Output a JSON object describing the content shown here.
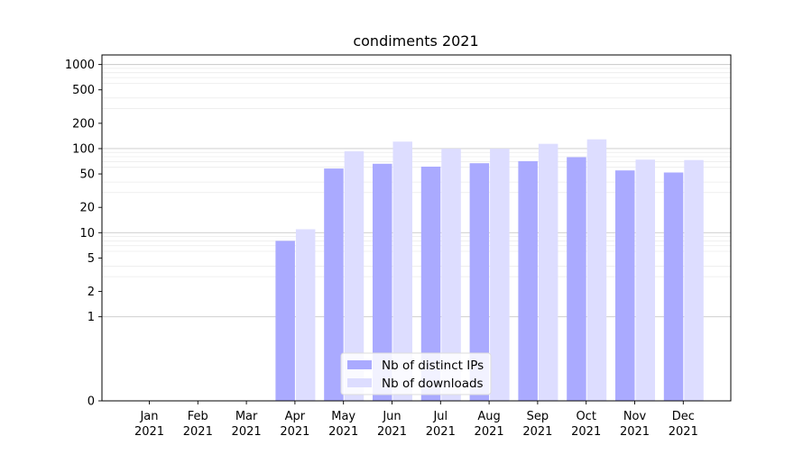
{
  "chart_data": {
    "type": "bar",
    "title": "condiments 2021",
    "xlabel": "",
    "ylabel": "",
    "yscale": "symlog",
    "ylim": [
      0,
      1300
    ],
    "yticks": [
      "0",
      "1",
      "2",
      "5",
      "10",
      "20",
      "50",
      "100",
      "200",
      "500",
      "1000"
    ],
    "categories": [
      [
        "Jan",
        "2021"
      ],
      [
        "Feb",
        "2021"
      ],
      [
        "Mar",
        "2021"
      ],
      [
        "Apr",
        "2021"
      ],
      [
        "May",
        "2021"
      ],
      [
        "Jun",
        "2021"
      ],
      [
        "Jul",
        "2021"
      ],
      [
        "Aug",
        "2021"
      ],
      [
        "Sep",
        "2021"
      ],
      [
        "Oct",
        "2021"
      ],
      [
        "Nov",
        "2021"
      ],
      [
        "Dec",
        "2021"
      ]
    ],
    "series": [
      {
        "name": "Nb of distinct IPs",
        "color": "#aaaaff",
        "values": [
          0,
          0,
          0,
          8,
          58,
          66,
          61,
          67,
          71,
          79,
          55,
          52
        ]
      },
      {
        "name": "Nb of downloads",
        "color": "#ddddff",
        "values": [
          0,
          0,
          0,
          11,
          93,
          121,
          100,
          100,
          114,
          129,
          74,
          73
        ]
      }
    ],
    "grid": true,
    "legend_position": "bottom-center"
  }
}
